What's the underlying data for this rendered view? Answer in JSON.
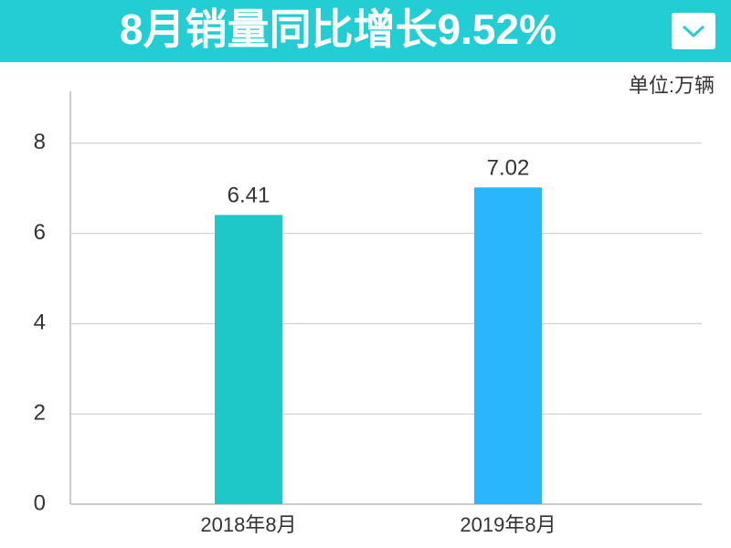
{
  "chart_data": {
    "type": "bar",
    "title": "8月销量同比增长9.52%",
    "unit_label": "单位:万辆",
    "categories": [
      "2018年8月",
      "2019年8月"
    ],
    "values": [
      6.41,
      7.02
    ],
    "colors": [
      "#1ec8c8",
      "#2ab6fb"
    ],
    "ylim": [
      0,
      9.15
    ],
    "yticks": [
      0,
      2,
      4,
      6,
      8
    ],
    "grid": true
  }
}
